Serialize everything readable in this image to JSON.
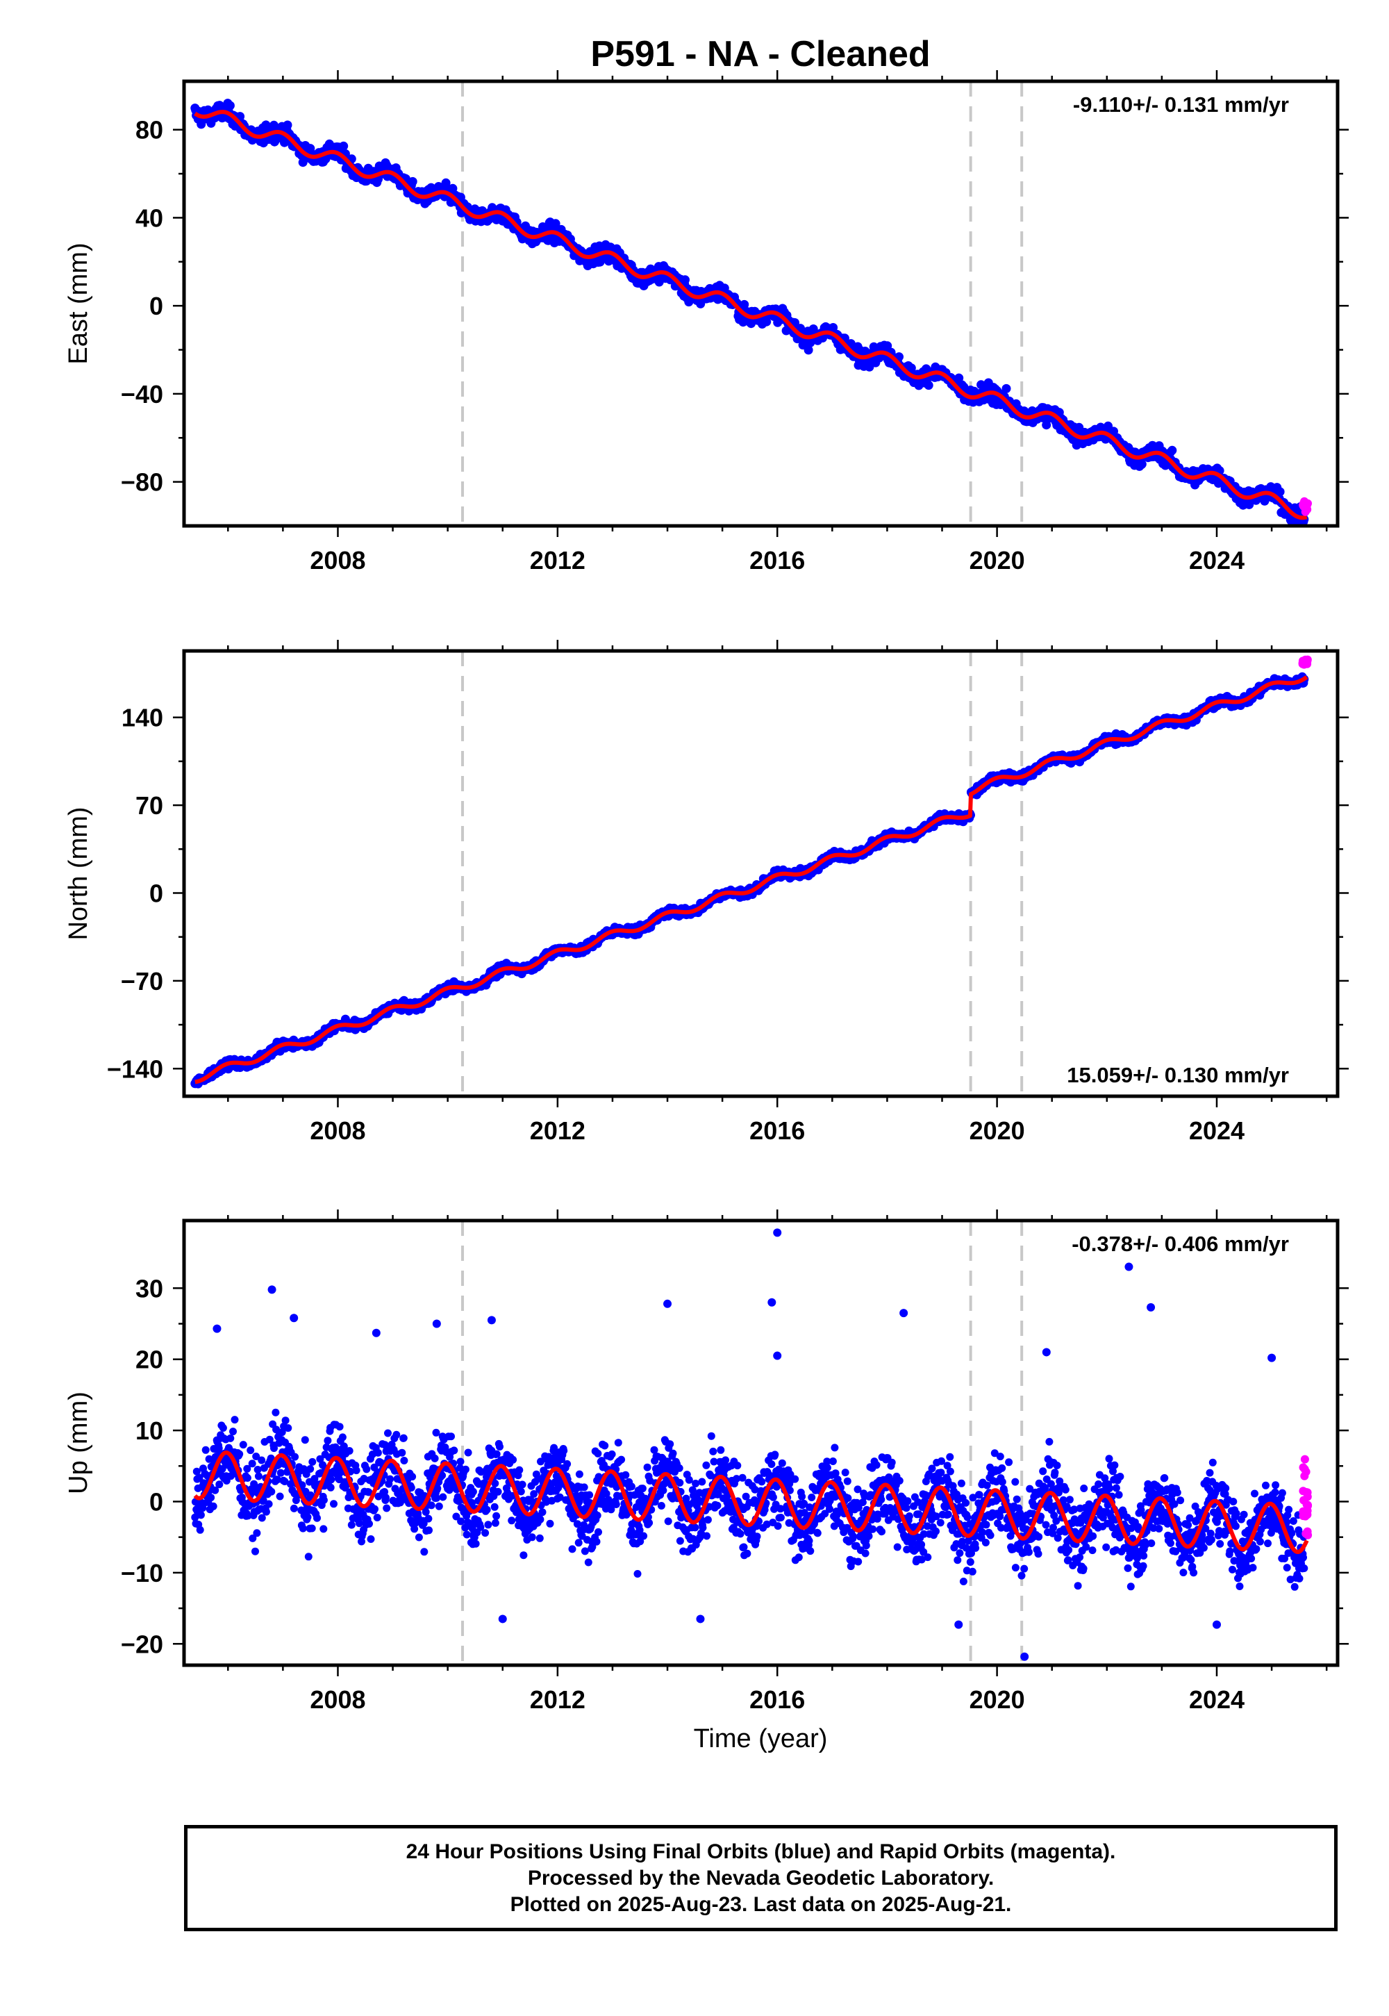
{
  "title": "P591  - NA - Cleaned",
  "xlabel": "Time (year)",
  "footer": {
    "line1": "24 Hour Positions Using Final Orbits (blue) and Rapid Orbits (magenta).",
    "line2": "Processed by the Nevada Geodetic Laboratory.",
    "line3": "Plotted on 2025-Aug-23. Last data on 2025-Aug-21."
  },
  "colors": {
    "final_orbits": "#0000ff",
    "rapid_orbits": "#ff00ff",
    "model": "#ff0000",
    "event_lines": "#c8c8c8"
  },
  "chart_data": [
    {
      "type": "scatter",
      "component": "east",
      "ylabel": "East (mm)",
      "rate": "-9.110+/- 0.131 mm/yr",
      "xlim": [
        2005.2,
        2026.2
      ],
      "ylim": [
        -100,
        102
      ],
      "xticks": [
        2008,
        2012,
        2016,
        2020,
        2024
      ],
      "yticks": [
        -80,
        -40,
        0,
        40,
        80
      ],
      "events": [
        2010.27,
        2019.52,
        2020.45
      ],
      "data_start": 2005.4,
      "data_end": 2025.64,
      "start_value": 90,
      "end_value": -91,
      "model": {
        "anchor_year": 2005.4,
        "anchor_value": 90,
        "rate": -9.11,
        "seasonal_amplitude": 3.0,
        "seasonal_phase": 1.7,
        "offsets": []
      },
      "scatter": {
        "spread": 2.6,
        "rapid_spread": 2.5,
        "label_pos": "top-right"
      },
      "series": [
        {
          "name": "Final Orbits",
          "color": "#0000ff"
        },
        {
          "name": "Rapid Orbits",
          "color": "#ff00ff"
        },
        {
          "name": "Model",
          "color": "#ff0000"
        }
      ]
    },
    {
      "type": "scatter",
      "component": "north",
      "ylabel": "North (mm)",
      "rate": "15.059+/- 0.130 mm/yr",
      "xlim": [
        2005.2,
        2026.2
      ],
      "ylim": [
        -162,
        193
      ],
      "xticks": [
        2008,
        2012,
        2016,
        2020,
        2024
      ],
      "yticks": [
        -140,
        -70,
        0,
        70,
        140
      ],
      "events": [
        2010.27,
        2019.52,
        2020.45
      ],
      "data_start": 2005.4,
      "data_end": 2025.64,
      "start_value": -146,
      "end_value": 184,
      "model": {
        "anchor_year": 2005.4,
        "anchor_value": -148,
        "rate": 15.059,
        "seasonal_amplitude": 3.0,
        "seasonal_phase": 1.7,
        "offsets": [
          {
            "year": 2019.52,
            "size": 17
          }
        ]
      },
      "scatter": {
        "spread": 2.4,
        "rapid_spread": 3.0,
        "label_pos": "bottom-right"
      },
      "series": [
        {
          "name": "Final Orbits",
          "color": "#0000ff"
        },
        {
          "name": "Rapid Orbits",
          "color": "#ff00ff"
        },
        {
          "name": "Model",
          "color": "#ff0000"
        }
      ]
    },
    {
      "type": "scatter",
      "component": "up",
      "ylabel": "Up (mm)",
      "rate": "-0.378+/- 0.406 mm/yr",
      "xlim": [
        2005.2,
        2026.2
      ],
      "ylim": [
        -23,
        39.5
      ],
      "xticks": [
        2008,
        2012,
        2016,
        2020,
        2024
      ],
      "yticks": [
        -20,
        -10,
        0,
        10,
        20,
        30
      ],
      "events": [
        2010.27,
        2019.52,
        2020.45
      ],
      "data_start": 2005.4,
      "data_end": 2025.64,
      "start_value": 3.8,
      "end_value": 0,
      "model": {
        "anchor_year": 2005.4,
        "anchor_value": 3.8,
        "rate": -0.378,
        "seasonal_amplitude": 3.3,
        "seasonal_phase": 1.75,
        "offsets": []
      },
      "scatter": {
        "spread": 3.8,
        "rapid_spread": 7.0,
        "label_pos": "top-right"
      },
      "outliers": [
        [
          2016.0,
          37.8
        ],
        [
          2022.4,
          33.0
        ],
        [
          2006.8,
          29.8
        ],
        [
          2015.9,
          28.0
        ],
        [
          2014.0,
          27.8
        ],
        [
          2018.3,
          26.5
        ],
        [
          2022.8,
          27.3
        ],
        [
          2007.2,
          25.8
        ],
        [
          2010.8,
          25.5
        ],
        [
          2009.8,
          25.0
        ],
        [
          2005.8,
          24.3
        ],
        [
          2008.7,
          23.7
        ],
        [
          2020.5,
          -21.8
        ],
        [
          2011.0,
          -16.5
        ],
        [
          2014.6,
          -16.5
        ],
        [
          2019.3,
          -17.3
        ],
        [
          2024.0,
          -17.3
        ],
        [
          2016.0,
          20.5
        ],
        [
          2020.9,
          21.0
        ],
        [
          2025.0,
          20.2
        ]
      ],
      "series": [
        {
          "name": "Final Orbits",
          "color": "#0000ff"
        },
        {
          "name": "Rapid Orbits",
          "color": "#ff00ff"
        },
        {
          "name": "Model",
          "color": "#ff0000"
        }
      ]
    }
  ]
}
